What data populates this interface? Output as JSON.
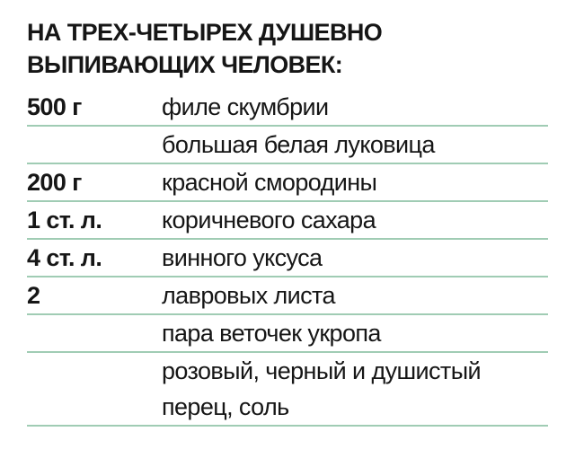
{
  "page": {
    "background_color": "#ffffff",
    "text_color": "#161616",
    "divider_color": "#a0ccb4"
  },
  "title": "НА ТРЕХ-ЧЕТЫРЕХ ДУШЕВНО ВЫПИВАЮЩИХ ЧЕЛОВЕК:",
  "ingredients": [
    {
      "quantity": "500 г",
      "item": "филе скумбрии"
    },
    {
      "quantity": "",
      "item": "большая белая луковица"
    },
    {
      "quantity": "200 г",
      "item": "красной смородины"
    },
    {
      "quantity": "1 ст. л.",
      "item": "коричневого сахара"
    },
    {
      "quantity": "4 ст. л.",
      "item": "винного уксуса"
    },
    {
      "quantity": "2",
      "item": "лавровых листа"
    },
    {
      "quantity": "",
      "item": "пара веточек укропа"
    },
    {
      "quantity": "",
      "item": "розовый, черный и душистый перец, соль"
    }
  ]
}
